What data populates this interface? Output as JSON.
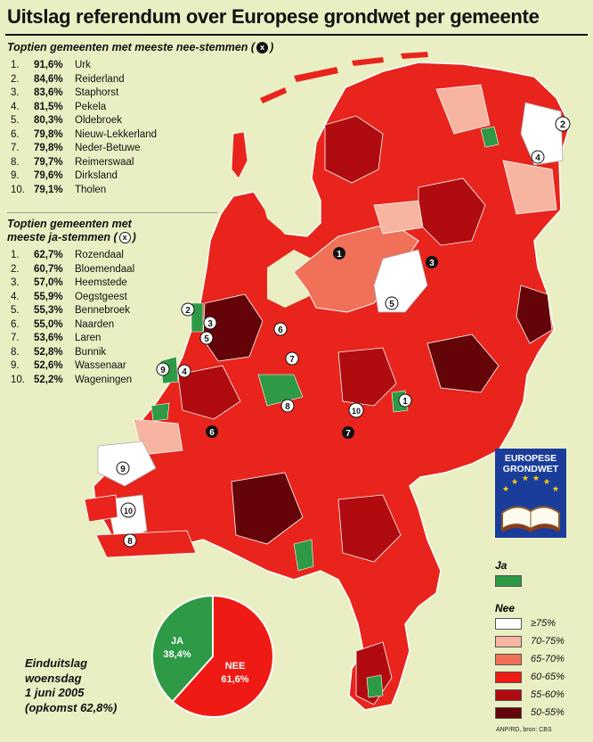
{
  "title": "Uitslag referendum over Europese grondwet per gemeente",
  "nee_top10": {
    "heading": "Toptien gemeenten met meeste nee-stemmen (",
    "heading_close": ")",
    "badge": "x",
    "items": [
      {
        "rank": "1.",
        "pct": "91,6%",
        "name": "Urk"
      },
      {
        "rank": "2.",
        "pct": "84,6%",
        "name": "Reiderland"
      },
      {
        "rank": "3.",
        "pct": "83,6%",
        "name": "Staphorst"
      },
      {
        "rank": "4.",
        "pct": "81,5%",
        "name": "Pekela"
      },
      {
        "rank": "5.",
        "pct": "80,3%",
        "name": "Oldebroek"
      },
      {
        "rank": "6.",
        "pct": "79,8%",
        "name": "Nieuw-Lekkerland"
      },
      {
        "rank": "7.",
        "pct": "79,8%",
        "name": "Neder-Betuwe"
      },
      {
        "rank": "8.",
        "pct": "79,7%",
        "name": "Reimerswaal"
      },
      {
        "rank": "9.",
        "pct": "79,6%",
        "name": "Dirksland"
      },
      {
        "rank": "10.",
        "pct": "79,1%",
        "name": "Tholen"
      }
    ]
  },
  "ja_top10": {
    "heading_line1": "Toptien gemeenten met",
    "heading_line2": "meeste ja-stemmen (",
    "heading_close": ")",
    "badge": "x",
    "items": [
      {
        "rank": "1.",
        "pct": "62,7%",
        "name": "Rozendaal"
      },
      {
        "rank": "2.",
        "pct": "60,7%",
        "name": "Bloemendaal"
      },
      {
        "rank": "3.",
        "pct": "57,0%",
        "name": "Heemstede"
      },
      {
        "rank": "4.",
        "pct": "55,9%",
        "name": "Oegstgeest"
      },
      {
        "rank": "5.",
        "pct": "55,3%",
        "name": "Bennebroek"
      },
      {
        "rank": "6.",
        "pct": "55,0%",
        "name": "Naarden"
      },
      {
        "rank": "7.",
        "pct": "53,6%",
        "name": "Laren"
      },
      {
        "rank": "8.",
        "pct": "52,8%",
        "name": "Bunnik"
      },
      {
        "rank": "9.",
        "pct": "52,6%",
        "name": "Wassenaar"
      },
      {
        "rank": "10.",
        "pct": "52,2%",
        "name": "Wageningen"
      }
    ]
  },
  "map_markers_nee": [
    "1",
    "2",
    "3",
    "4",
    "5",
    "6",
    "7",
    "8",
    "9",
    "10"
  ],
  "map_markers_ja": [
    "1",
    "2",
    "3",
    "4",
    "5",
    "6",
    "7",
    "8",
    "9",
    "10"
  ],
  "pie": {
    "ja_label": "JA",
    "ja_value": "38,4%",
    "nee_label": "NEE",
    "nee_value": "61,6%",
    "ja_fraction": 0.384,
    "ja_color": "#2e9a46",
    "nee_color": "#f01a14"
  },
  "result": {
    "line1": "Einduitslag",
    "line2": "woensdag",
    "line3": "1 juni 2005",
    "line4": "(opkomst 62,8%)"
  },
  "logo": {
    "line1": "EUROPESE",
    "line2": "GRONDWET"
  },
  "legend": {
    "ja_label": "Ja",
    "ja_color": "#2e9a46",
    "nee_label": "Nee",
    "classes": [
      {
        "label": "≥75%",
        "color": "#ffffff"
      },
      {
        "label": "70-75%",
        "color": "#f7b4a0"
      },
      {
        "label": "65-70%",
        "color": "#f07058"
      },
      {
        "label": "60-65%",
        "color": "#f01a14"
      },
      {
        "label": "55-60%",
        "color": "#b00c10"
      },
      {
        "label": "50-55%",
        "color": "#640408"
      }
    ]
  },
  "source": "ANP/RD, bron: CBS"
}
